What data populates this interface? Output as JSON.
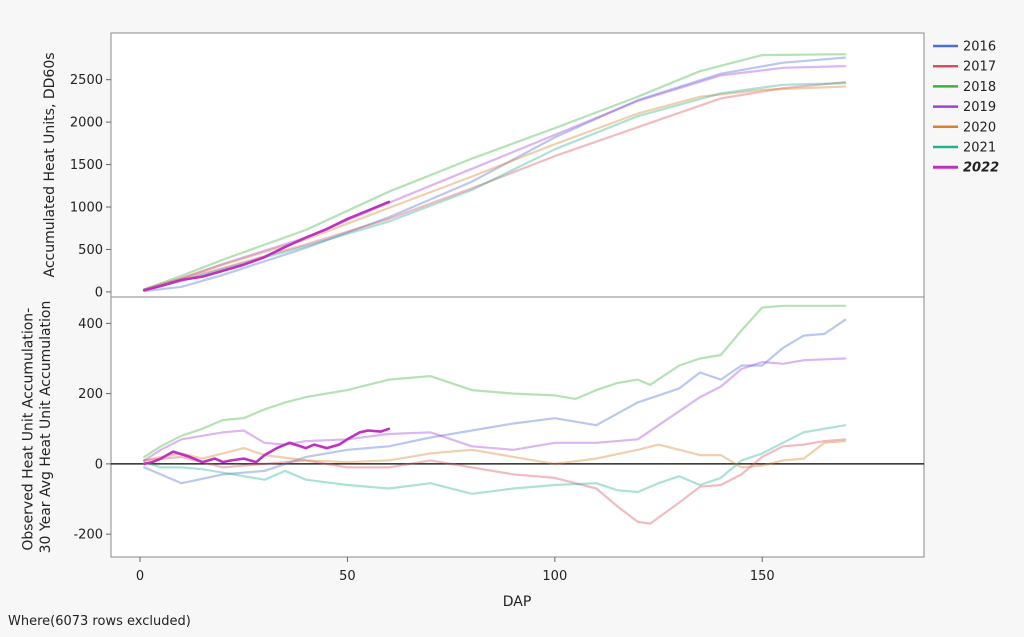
{
  "footer_note": "Where(6073 rows excluded)",
  "colors": {
    "2016": "#4a6fd8",
    "2017": "#d9505c",
    "2018": "#3bb23b",
    "2019": "#a040d8",
    "2020": "#d8802a",
    "2021": "#25b090",
    "2022": "#c030c0"
  },
  "chart_data": [
    {
      "type": "line",
      "ylabel": "Accumulated Heat Units, DD60s",
      "xlabel": "",
      "xlim": [
        -7,
        189
      ],
      "ylim": [
        -60,
        3050
      ],
      "yticks": [
        "0",
        "500",
        "1000",
        "1500",
        "2000",
        "2500"
      ],
      "ytick_values": [
        0,
        500,
        1000,
        1500,
        2000,
        2500
      ],
      "legend_position": "right",
      "series": [
        {
          "name": "2016",
          "x": [
            1,
            10,
            20,
            40,
            60,
            80,
            100,
            120,
            140,
            155,
            170
          ],
          "y": [
            10,
            60,
            200,
            520,
            880,
            1300,
            1820,
            2260,
            2570,
            2700,
            2760
          ]
        },
        {
          "name": "2017",
          "x": [
            1,
            10,
            20,
            40,
            60,
            80,
            100,
            120,
            140,
            155,
            170
          ],
          "y": [
            20,
            150,
            280,
            560,
            860,
            1220,
            1600,
            1940,
            2280,
            2400,
            2470
          ]
        },
        {
          "name": "2018",
          "x": [
            1,
            10,
            20,
            40,
            60,
            80,
            100,
            120,
            135,
            150,
            170
          ],
          "y": [
            30,
            190,
            380,
            730,
            1180,
            1570,
            1930,
            2300,
            2600,
            2790,
            2800
          ]
        },
        {
          "name": "2019",
          "x": [
            1,
            10,
            20,
            40,
            60,
            80,
            100,
            120,
            140,
            155,
            170
          ],
          "y": [
            30,
            160,
            330,
            640,
            1050,
            1450,
            1850,
            2250,
            2550,
            2640,
            2660
          ]
        },
        {
          "name": "2020",
          "x": [
            1,
            10,
            20,
            40,
            60,
            80,
            100,
            120,
            135,
            150,
            170
          ],
          "y": [
            30,
            160,
            320,
            620,
            990,
            1360,
            1740,
            2100,
            2300,
            2380,
            2420
          ]
        },
        {
          "name": "2021",
          "x": [
            1,
            10,
            20,
            40,
            60,
            80,
            100,
            120,
            140,
            155,
            170
          ],
          "y": [
            20,
            130,
            270,
            540,
            830,
            1200,
            1680,
            2070,
            2340,
            2440,
            2460
          ]
        },
        {
          "name": "2022",
          "x": [
            1,
            5,
            10,
            15,
            20,
            25,
            30,
            35,
            40,
            45,
            50,
            55,
            60
          ],
          "y": [
            20,
            70,
            140,
            180,
            250,
            320,
            410,
            530,
            640,
            740,
            860,
            960,
            1060
          ]
        }
      ]
    },
    {
      "type": "line",
      "ylabel": "Observed Heat Unit Accumulation-\n30 Year Avg Heat Unit Accumulation",
      "xlabel": "DAP",
      "xlim": [
        -7,
        189
      ],
      "ylim": [
        -265,
        475
      ],
      "xticks": [
        "0",
        "50",
        "100",
        "150"
      ],
      "xtick_values": [
        0,
        50,
        100,
        150
      ],
      "yticks": [
        "-200",
        "0",
        "200",
        "400"
      ],
      "ytick_values": [
        -200,
        0,
        200,
        400
      ],
      "reference_line": 0,
      "series": [
        {
          "name": "2016",
          "x": [
            1,
            5,
            10,
            20,
            30,
            40,
            50,
            60,
            70,
            80,
            90,
            100,
            110,
            120,
            130,
            135,
            140,
            145,
            150,
            155,
            160,
            165,
            170
          ],
          "y": [
            -10,
            -30,
            -55,
            -30,
            -20,
            20,
            40,
            50,
            75,
            95,
            115,
            130,
            110,
            175,
            215,
            260,
            240,
            280,
            280,
            330,
            365,
            370,
            410
          ]
        },
        {
          "name": "2017",
          "x": [
            1,
            10,
            20,
            30,
            40,
            50,
            60,
            70,
            80,
            90,
            100,
            110,
            115,
            120,
            123,
            130,
            135,
            140,
            145,
            150,
            155,
            160,
            165,
            170
          ],
          "y": [
            10,
            20,
            -10,
            0,
            10,
            -10,
            -10,
            10,
            -10,
            -30,
            -40,
            -70,
            -120,
            -165,
            -170,
            -110,
            -65,
            -60,
            -30,
            20,
            50,
            55,
            65,
            70
          ]
        },
        {
          "name": "2018",
          "x": [
            1,
            5,
            10,
            15,
            20,
            25,
            30,
            35,
            40,
            50,
            60,
            70,
            80,
            90,
            100,
            105,
            110,
            115,
            120,
            123,
            130,
            135,
            140,
            145,
            150,
            155,
            160,
            170
          ],
          "y": [
            20,
            50,
            80,
            100,
            125,
            130,
            155,
            175,
            190,
            210,
            240,
            250,
            210,
            200,
            195,
            185,
            210,
            230,
            240,
            225,
            280,
            300,
            310,
            380,
            445,
            450,
            450,
            450
          ]
        },
        {
          "name": "2019",
          "x": [
            1,
            5,
            10,
            15,
            20,
            25,
            30,
            35,
            40,
            50,
            60,
            70,
            80,
            90,
            100,
            110,
            120,
            130,
            135,
            140,
            145,
            150,
            155,
            160,
            170
          ],
          "y": [
            10,
            40,
            70,
            80,
            90,
            95,
            60,
            55,
            65,
            70,
            85,
            90,
            50,
            40,
            60,
            60,
            70,
            150,
            190,
            220,
            270,
            290,
            285,
            295,
            300
          ]
        },
        {
          "name": "2020",
          "x": [
            1,
            5,
            10,
            15,
            20,
            25,
            30,
            40,
            50,
            60,
            70,
            80,
            90,
            100,
            110,
            120,
            125,
            130,
            135,
            140,
            145,
            150,
            155,
            160,
            165,
            170
          ],
          "y": [
            10,
            20,
            30,
            15,
            30,
            45,
            25,
            10,
            5,
            10,
            30,
            40,
            20,
            0,
            15,
            40,
            55,
            40,
            25,
            25,
            -10,
            -5,
            10,
            15,
            60,
            65
          ]
        },
        {
          "name": "2021",
          "x": [
            1,
            5,
            10,
            15,
            20,
            25,
            30,
            35,
            40,
            50,
            60,
            70,
            80,
            90,
            100,
            110,
            115,
            120,
            125,
            130,
            135,
            140,
            145,
            150,
            155,
            160,
            165,
            170
          ],
          "y": [
            5,
            -10,
            -10,
            -15,
            -25,
            -35,
            -45,
            -20,
            -45,
            -60,
            -70,
            -55,
            -85,
            -70,
            -60,
            -55,
            -75,
            -80,
            -55,
            -35,
            -60,
            -40,
            10,
            30,
            60,
            90,
            100,
            110
          ]
        },
        {
          "name": "2022",
          "x": [
            1,
            3,
            5,
            8,
            12,
            15,
            18,
            20,
            22,
            25,
            28,
            30,
            33,
            36,
            40,
            42,
            45,
            48,
            50,
            53,
            55,
            58,
            60
          ],
          "y": [
            0,
            5,
            15,
            35,
            20,
            5,
            15,
            5,
            10,
            15,
            5,
            25,
            45,
            60,
            45,
            55,
            45,
            55,
            70,
            90,
            95,
            92,
            100
          ]
        }
      ]
    }
  ]
}
